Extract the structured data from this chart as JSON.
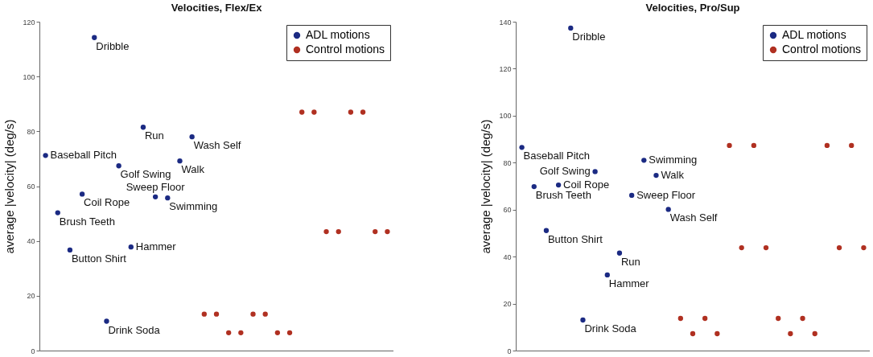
{
  "chart_data": [
    {
      "type": "scatter",
      "title": "Velocities, Flex/Ex",
      "ylabel": "average |velocity| (deg/s)",
      "categories": [
        null,
        null,
        null,
        null,
        null,
        null,
        null,
        null,
        null,
        null,
        null,
        null,
        null,
        null,
        null,
        null,
        null,
        null,
        null,
        null,
        null,
        null,
        null,
        null,
        null,
        null,
        null,
        null,
        null
      ],
      "ylim": [
        0,
        120
      ],
      "yticks": [
        0,
        20,
        40,
        60,
        80,
        100,
        120
      ],
      "tick_labels": "y",
      "legend": "top right",
      "marker": "circle",
      "series": [
        {
          "name": "ADL motions",
          "color": "#1b2a83",
          "values": [
            71.2,
            50.3,
            36.7,
            57.1,
            114.2,
            10.7,
            67.4,
            37.8,
            81.5,
            56.1,
            55.7,
            69.2,
            78.0,
            null,
            null,
            null,
            null,
            null,
            null,
            null,
            null,
            null,
            null,
            null,
            null,
            null,
            null,
            null,
            null
          ],
          "value_labels": [
            "Baseball Pitch",
            "Brush Teeth",
            "Button Shirt",
            "Coil Rope",
            "Dribble",
            "Drink Soda",
            "Golf Swing",
            "Hammer",
            "Run",
            "Sweep Floor",
            "Swimming",
            "Walk",
            "Wash Self",
            null,
            null,
            null,
            null,
            null,
            null,
            null,
            null,
            null,
            null,
            null,
            null,
            null,
            null,
            null,
            null
          ]
        },
        {
          "name": "Control motions",
          "color": "#b03021",
          "values": [
            null,
            null,
            null,
            null,
            null,
            null,
            null,
            null,
            null,
            null,
            null,
            null,
            null,
            13.3,
            13.3,
            6.5,
            6.5,
            13.3,
            13.3,
            6.5,
            6.5,
            87,
            87,
            43.4,
            43.4,
            87,
            87,
            43.4,
            43.4
          ]
        }
      ]
    },
    {
      "type": "scatter",
      "title": "Velocities, Pro/Sup",
      "ylabel": "average |velocity| (deg/s)",
      "categories": [
        null,
        null,
        null,
        null,
        null,
        null,
        null,
        null,
        null,
        null,
        null,
        null,
        null,
        null,
        null,
        null,
        null,
        null,
        null,
        null,
        null,
        null,
        null,
        null,
        null,
        null,
        null,
        null,
        null
      ],
      "ylim": [
        0,
        140
      ],
      "yticks": [
        0,
        20,
        40,
        60,
        80,
        100,
        120,
        140
      ],
      "tick_labels": "y",
      "legend": "top right",
      "marker": "circle",
      "series": [
        {
          "name": "ADL motions",
          "color": "#1b2a83",
          "values": [
            86.5,
            69.8,
            51.1,
            70.5,
            137.3,
            13.0,
            76.2,
            32.2,
            41.5,
            66.1,
            81.0,
            74.6,
            60.1,
            null,
            null,
            null,
            null,
            null,
            null,
            null,
            null,
            null,
            null,
            null,
            null,
            null,
            null,
            null,
            null
          ],
          "value_labels": [
            "Baseball Pitch",
            "Brush Teeth",
            "Button Shirt",
            "Coil Rope",
            "Dribble",
            "Drink Soda",
            "Golf Swing",
            "Hammer",
            "Run",
            "Sweep Floor",
            "Swimming",
            "Walk",
            "Wash Self",
            null,
            null,
            null,
            null,
            null,
            null,
            null,
            null,
            null,
            null,
            null,
            null,
            null,
            null,
            null,
            null
          ]
        },
        {
          "name": "Control motions",
          "color": "#b03021",
          "values": [
            null,
            null,
            null,
            null,
            null,
            null,
            null,
            null,
            null,
            null,
            null,
            null,
            null,
            13.7,
            7.2,
            13.7,
            7.2,
            87.3,
            43.8,
            87.3,
            43.8,
            13.7,
            7.2,
            13.7,
            7.2,
            87.3,
            43.8,
            87.3,
            43.8
          ]
        }
      ]
    }
  ]
}
